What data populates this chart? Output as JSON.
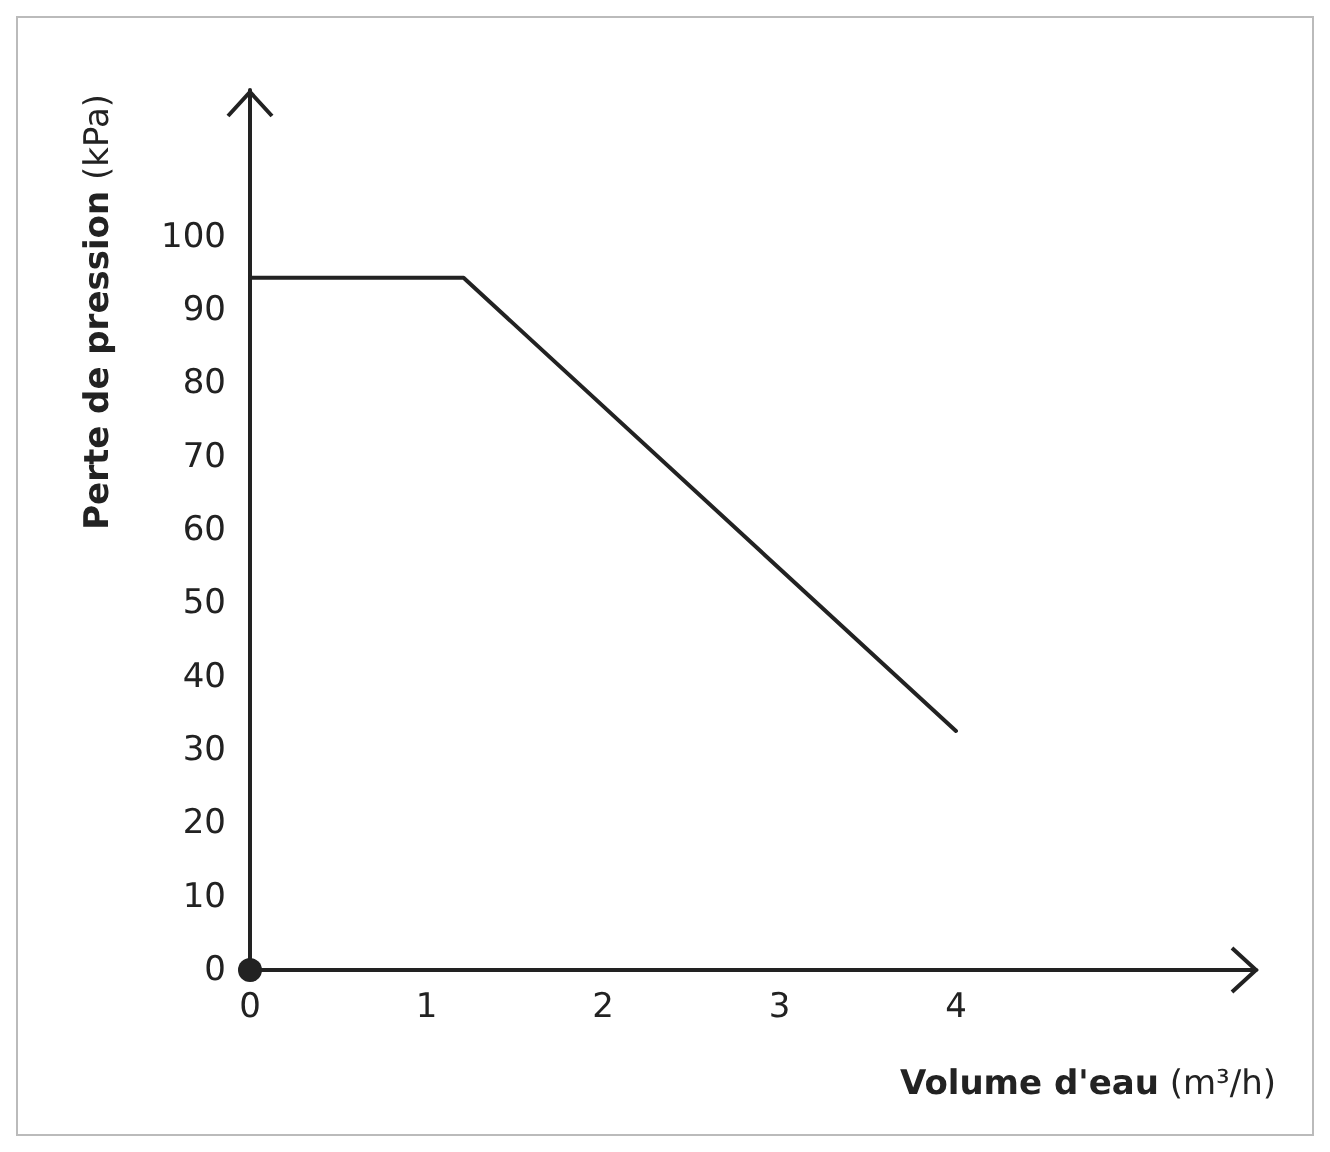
{
  "chart_data": {
    "type": "line",
    "xlabel": "Volume d'eau (m³/h)",
    "ylabel": "Perte de pression (kPa)",
    "x": [
      0,
      1.21,
      4
    ],
    "series": [
      {
        "color": "#222222",
        "values": [
          94.4,
          94.4,
          32.6
        ]
      }
    ],
    "xlim": [
      0,
      5.7
    ],
    "xticks": [
      0,
      1,
      2,
      3,
      4
    ],
    "ylim": [
      0,
      120
    ],
    "yticks": [
      0,
      10,
      20,
      30,
      40,
      50,
      60,
      70,
      80,
      90,
      100
    ],
    "grid": false,
    "marker": "none",
    "line_style": "solid"
  }
}
